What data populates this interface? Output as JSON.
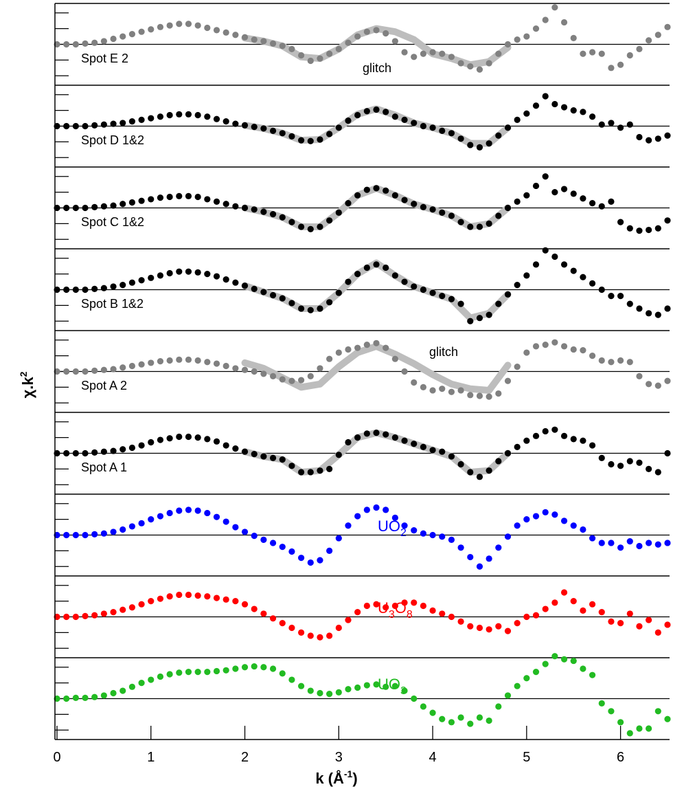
{
  "chart_data": {
    "type": "scatter",
    "xlim": [
      0,
      6.5
    ],
    "xticks": [
      0,
      1,
      2,
      3,
      4,
      5,
      6
    ],
    "ylim": [
      -2.6,
      2.6
    ],
    "yticks": [
      -2,
      -1,
      0,
      1,
      2
    ],
    "xlabel_parts": [
      "k (Å",
      "-1",
      ")"
    ],
    "ylabel_parts": [
      "χ.k",
      "2"
    ],
    "x": [
      0,
      0.1,
      0.2,
      0.3,
      0.4,
      0.5,
      0.6,
      0.7,
      0.8,
      0.9,
      1,
      1.1,
      1.2,
      1.3,
      1.4,
      1.5,
      1.6,
      1.7,
      1.8,
      1.9,
      2,
      2.1,
      2.2,
      2.3,
      2.4,
      2.5,
      2.6,
      2.7,
      2.8,
      2.9,
      3,
      3.1,
      3.2,
      3.3,
      3.4,
      3.5,
      3.6,
      3.7,
      3.8,
      3.9,
      4,
      4.1,
      4.2,
      4.3,
      4.4,
      4.5,
      4.6,
      4.7,
      4.8,
      4.9,
      5,
      5.1,
      5.2,
      5.3,
      5.4,
      5.5,
      5.6,
      5.7,
      5.8,
      5.9,
      6,
      6.1,
      6.2,
      6.3,
      6.4,
      6.5
    ],
    "fit_x": [
      2,
      2.2,
      2.4,
      2.6,
      2.8,
      3,
      3.2,
      3.4,
      3.6,
      3.8,
      4,
      4.2,
      4.4,
      4.6,
      4.8
    ],
    "panels": [
      {
        "label_parts": [
          "Spot E 2"
        ],
        "annotation": "glitch",
        "color": "#808080",
        "values": [
          0,
          0,
          0,
          0.05,
          0.1,
          0.2,
          0.35,
          0.5,
          0.65,
          0.8,
          0.95,
          1.1,
          1.2,
          1.3,
          1.3,
          1.2,
          1.05,
          0.9,
          0.75,
          0.6,
          0.45,
          0.3,
          0.2,
          0.05,
          -0.1,
          -0.3,
          -0.7,
          -1.05,
          -0.9,
          -0.6,
          -0.3,
          0.1,
          0.5,
          0.8,
          0.9,
          0.7,
          0.2,
          -0.5,
          -0.8,
          -0.6,
          -0.5,
          -0.6,
          -0.8,
          -1.2,
          -1.4,
          -1.6,
          -1.2,
          -0.6,
          0,
          0.3,
          0.5,
          1,
          1.55,
          2.35,
          1.4,
          0.4,
          -0.6,
          -0.5,
          -0.6,
          -1.5,
          -1.3,
          -0.7,
          -0.3,
          0.25,
          0.6,
          1.1
        ],
        "fit": [
          0.4,
          0.2,
          -0.1,
          -0.8,
          -0.9,
          -0.3,
          0.6,
          1,
          0.8,
          0.3,
          -0.6,
          -0.9,
          -1.3,
          -1.1,
          -0.2
        ]
      },
      {
        "label_parts": [
          "Spot D 1&2"
        ],
        "color": "#000000",
        "values": [
          0,
          0,
          0,
          0,
          0.05,
          0.1,
          0.15,
          0.2,
          0.3,
          0.4,
          0.5,
          0.6,
          0.7,
          0.75,
          0.75,
          0.7,
          0.6,
          0.45,
          0.3,
          0.15,
          0.05,
          -0.05,
          -0.15,
          -0.3,
          -0.45,
          -0.65,
          -0.9,
          -0.95,
          -0.85,
          -0.5,
          -0.1,
          0.35,
          0.7,
          0.95,
          1.05,
          0.9,
          0.6,
          0.4,
          0.2,
          0,
          -0.1,
          -0.3,
          -0.45,
          -0.8,
          -1.2,
          -1.35,
          -1.1,
          -0.6,
          -0.1,
          0.4,
          0.8,
          1.3,
          1.9,
          1.4,
          1.2,
          1,
          0.9,
          0.6,
          0.1,
          0.2,
          -0.1,
          0.1,
          -0.7,
          -0.9,
          -0.8,
          -0.6
        ],
        "fit": [
          0.05,
          -0.15,
          -0.45,
          -0.9,
          -0.85,
          -0.1,
          0.75,
          1.1,
          0.7,
          0.2,
          -0.1,
          -0.45,
          -1.1,
          -1.1,
          -0.1
        ]
      },
      {
        "label_parts": [
          "Spot C 1&2"
        ],
        "color": "#000000",
        "values": [
          0,
          0,
          0,
          0,
          0.05,
          0.1,
          0.15,
          0.25,
          0.35,
          0.45,
          0.55,
          0.65,
          0.7,
          0.75,
          0.75,
          0.7,
          0.55,
          0.4,
          0.25,
          0.1,
          0,
          -0.1,
          -0.25,
          -0.4,
          -0.6,
          -0.9,
          -1.2,
          -1.35,
          -1.2,
          -0.8,
          -0.3,
          0.3,
          0.8,
          1.15,
          1.25,
          1.1,
          0.8,
          0.5,
          0.25,
          0.05,
          -0.1,
          -0.3,
          -0.5,
          -0.9,
          -1.2,
          -1.2,
          -1,
          -0.5,
          0,
          0.4,
          0.8,
          1.4,
          2,
          1,
          1.2,
          0.9,
          0.6,
          0.3,
          0.1,
          0.4,
          -0.9,
          -1.3,
          -1.45,
          -1.4,
          -1.3,
          -0.8
        ],
        "fit": [
          0,
          -0.25,
          -0.6,
          -1.2,
          -1.2,
          -0.3,
          0.8,
          1.25,
          0.8,
          0.25,
          -0.1,
          -0.5,
          -1.2,
          -1,
          0
        ]
      },
      {
        "label_parts": [
          "Spot B 1&2"
        ],
        "color": "#000000",
        "values": [
          0,
          0,
          0,
          0,
          0.05,
          0.1,
          0.2,
          0.3,
          0.45,
          0.6,
          0.75,
          0.9,
          1.05,
          1.15,
          1.15,
          1.1,
          1,
          0.85,
          0.65,
          0.45,
          0.25,
          0.05,
          -0.15,
          -0.35,
          -0.55,
          -0.85,
          -1.2,
          -1.3,
          -1.2,
          -0.8,
          -0.2,
          0.5,
          1,
          1.4,
          1.6,
          1.4,
          0.9,
          0.5,
          0.2,
          0,
          -0.2,
          -0.4,
          -0.6,
          -0.9,
          -2,
          -1.8,
          -1.6,
          -0.9,
          -0.3,
          0.3,
          0.9,
          1.6,
          2.5,
          2.1,
          1.6,
          1.2,
          0.8,
          0.4,
          0,
          -0.4,
          -0.4,
          -0.9,
          -1.2,
          -1.5,
          -1.6,
          -1.2
        ],
        "fit": [
          0.25,
          -0.15,
          -0.55,
          -1.2,
          -1.2,
          -0.2,
          1,
          1.7,
          0.9,
          0.2,
          -0.2,
          -0.6,
          -1.8,
          -1.5,
          -0.3
        ]
      },
      {
        "label_parts": [
          "Spot A 2"
        ],
        "annotation": "glitch",
        "color": "#808080",
        "values": [
          0,
          0,
          0,
          0,
          0.05,
          0.1,
          0.15,
          0.25,
          0.35,
          0.45,
          0.55,
          0.65,
          0.7,
          0.75,
          0.75,
          0.7,
          0.6,
          0.5,
          0.35,
          0.2,
          0.1,
          0,
          -0.15,
          -0.3,
          -0.5,
          -0.6,
          -0.55,
          -0.3,
          0.2,
          0.8,
          1.2,
          1.4,
          1.5,
          1.7,
          1.8,
          1.5,
          0.8,
          0,
          -0.7,
          -1,
          -1.2,
          -1.1,
          -1.3,
          -1.2,
          -1.5,
          -1.55,
          -1.6,
          -1.4,
          -0.6,
          0.3,
          1.2,
          1.6,
          1.7,
          1.85,
          1.6,
          1.4,
          1.35,
          1,
          0.7,
          0.6,
          0.7,
          0.6,
          -0.3,
          -0.8,
          -0.9,
          -0.6
        ],
        "fit": [
          0.55,
          0.2,
          -0.4,
          -1,
          -0.8,
          0.3,
          1.2,
          1.6,
          1.1,
          0.5,
          -0.2,
          -0.8,
          -1.1,
          -1.2,
          0.4
        ]
      },
      {
        "label_parts": [
          "Spot A 1"
        ],
        "color": "#000000",
        "values": [
          0,
          0,
          0,
          0,
          0.05,
          0.1,
          0.15,
          0.25,
          0.35,
          0.5,
          0.7,
          0.85,
          0.95,
          1.05,
          1.05,
          1,
          0.9,
          0.75,
          0.5,
          0.3,
          0.1,
          -0.05,
          -0.2,
          -0.3,
          -0.4,
          -0.8,
          -1.2,
          -1.2,
          -1.1,
          -1,
          -0.1,
          0.7,
          1,
          1.25,
          1.3,
          1.2,
          1,
          0.8,
          0.6,
          0.4,
          0.2,
          0.1,
          -0.2,
          -0.7,
          -1.2,
          -1.5,
          -1.1,
          -0.5,
          0,
          0.4,
          0.8,
          1.1,
          1.4,
          1.5,
          1.1,
          0.9,
          0.8,
          0.5,
          -0.3,
          -0.7,
          -0.8,
          -0.5,
          -0.6,
          -1,
          -1.2,
          0
        ],
        "fit": [
          0.1,
          -0.2,
          -0.4,
          -1.2,
          -1.1,
          -0.1,
          1,
          1.3,
          1,
          0.6,
          0.2,
          -0.2,
          -1.2,
          -1.1,
          0
        ]
      },
      {
        "label_parts": [
          "UO",
          "2"
        ],
        "color": "#0000ff",
        "values": [
          0,
          0,
          0,
          0,
          0.05,
          0.1,
          0.2,
          0.35,
          0.55,
          0.75,
          1,
          1.2,
          1.4,
          1.55,
          1.6,
          1.55,
          1.4,
          1.15,
          0.85,
          0.5,
          0.2,
          -0.05,
          -0.3,
          -0.5,
          -0.75,
          -1.05,
          -1.45,
          -1.75,
          -1.6,
          -1,
          -0.2,
          0.6,
          1.2,
          1.6,
          1.75,
          1.6,
          1.1,
          0.6,
          0.3,
          0.1,
          0,
          -0.1,
          -0.3,
          -0.8,
          -1.4,
          -2,
          -1.5,
          -0.8,
          -0.1,
          0.6,
          1,
          1.2,
          1.45,
          1.3,
          0.9,
          0.6,
          0.35,
          -0.2,
          -0.5,
          -0.5,
          -0.8,
          -0.4,
          -0.7,
          -0.5,
          -0.6,
          -0.5
        ]
      },
      {
        "label_parts": [
          "U",
          "3",
          "O",
          "8"
        ],
        "color": "#ff0000",
        "values": [
          0,
          0,
          0,
          0.05,
          0.1,
          0.2,
          0.3,
          0.45,
          0.6,
          0.8,
          1,
          1.15,
          1.3,
          1.4,
          1.4,
          1.35,
          1.3,
          1.2,
          1.1,
          1,
          0.8,
          0.5,
          0.2,
          -0.1,
          -0.4,
          -0.7,
          -1,
          -1.2,
          -1.3,
          -1.2,
          -0.7,
          -0.2,
          0.3,
          0.7,
          0.8,
          0.6,
          0.7,
          0.9,
          0.9,
          0.7,
          0.4,
          0.2,
          0,
          -0.3,
          -0.6,
          -0.7,
          -0.8,
          -0.6,
          -0.9,
          -0.4,
          0,
          0.1,
          0.5,
          0.9,
          1.55,
          1,
          0.4,
          0.8,
          0.3,
          -0.3,
          -0.4,
          0.2,
          -0.6,
          -0.2,
          -1,
          -0.5
        ]
      },
      {
        "label_parts": [
          "UO",
          "3"
        ],
        "color": "#22bb22",
        "values": [
          0,
          0,
          0.05,
          0.05,
          0.1,
          0.2,
          0.35,
          0.5,
          0.75,
          1,
          1.2,
          1.4,
          1.55,
          1.65,
          1.7,
          1.7,
          1.7,
          1.75,
          1.8,
          1.9,
          2,
          2.05,
          2,
          1.9,
          1.6,
          1.2,
          0.8,
          0.5,
          0.35,
          0.3,
          0.4,
          0.6,
          0.7,
          0.85,
          0.9,
          0.75,
          0.8,
          0.5,
          0,
          -0.5,
          -0.9,
          -1.3,
          -1.5,
          -1.2,
          -1.6,
          -1.2,
          -1.4,
          -0.5,
          0.2,
          0.8,
          1.3,
          1.7,
          2.2,
          2.7,
          2.5,
          2.4,
          1.9,
          1.5,
          -0.3,
          -0.8,
          -1.5,
          -2.2,
          -1.9,
          -1.9,
          -0.8,
          -1.3
        ]
      }
    ]
  }
}
